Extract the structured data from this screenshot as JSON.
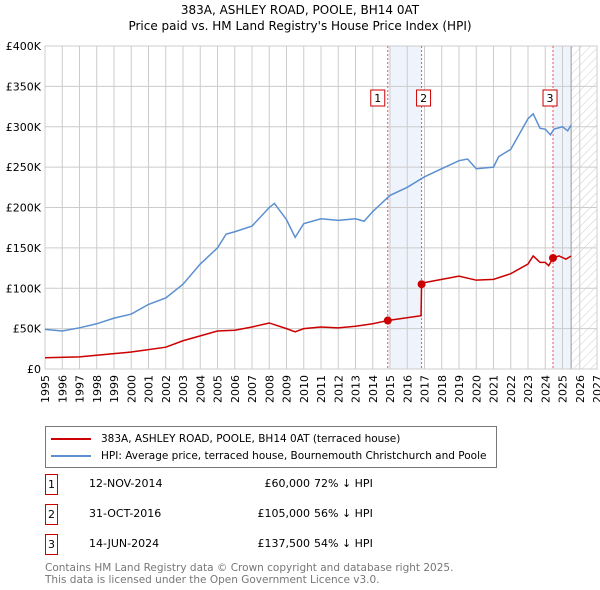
{
  "chart_data": {
    "type": "line",
    "title": "383A, ASHLEY ROAD, POOLE, BH14 0AT",
    "subtitle": "Price paid vs. HM Land Registry's House Price Index (HPI)",
    "xlim": [
      1995,
      2027
    ],
    "ylim": [
      0,
      400000
    ],
    "x_ticks": [
      "1995",
      "1996",
      "1997",
      "1998",
      "1999",
      "2000",
      "2001",
      "2002",
      "2003",
      "2004",
      "2005",
      "2006",
      "2007",
      "2008",
      "2009",
      "2010",
      "2011",
      "2012",
      "2013",
      "2014",
      "2015",
      "2016",
      "2017",
      "2018",
      "2019",
      "2020",
      "2021",
      "2022",
      "2023",
      "2024",
      "2025",
      "2026",
      "2027"
    ],
    "y_ticks": [
      {
        "v": 0,
        "l": "£0"
      },
      {
        "v": 50000,
        "l": "£50K"
      },
      {
        "v": 100000,
        "l": "£100K"
      },
      {
        "v": 150000,
        "l": "£150K"
      },
      {
        "v": 200000,
        "l": "£200K"
      },
      {
        "v": 250000,
        "l": "£250K"
      },
      {
        "v": 300000,
        "l": "£300K"
      },
      {
        "v": 350000,
        "l": "£350K"
      },
      {
        "v": 400000,
        "l": "£400K"
      }
    ],
    "grid": true,
    "series": [
      {
        "name": "383A, ASHLEY ROAD, POOLE, BH14 0AT (terraced house)",
        "color": "#cc0000",
        "x": [
          1995,
          1997,
          1999,
          2000,
          2001,
          2002,
          2003,
          2004,
          2005,
          2006,
          2007,
          2008,
          2009,
          2009.5,
          2010,
          2011,
          2012,
          2013,
          2014,
          2014.87,
          2016.8,
          2016.83,
          2017,
          2018,
          2019,
          2020,
          2021,
          2022,
          2023,
          2023.3,
          2023.7,
          2024,
          2024.2,
          2024.45,
          2024.8,
          2025.2,
          2025.5
        ],
        "y": [
          14000,
          15000,
          19000,
          21000,
          24000,
          27000,
          35000,
          41000,
          47000,
          48000,
          52000,
          57000,
          50000,
          46000,
          50000,
          52000,
          51000,
          53000,
          56000,
          60000,
          66000,
          105000,
          107000,
          111000,
          115000,
          110000,
          111000,
          118000,
          130000,
          140000,
          132000,
          132000,
          128000,
          137500,
          140000,
          136000,
          140000
        ]
      },
      {
        "name": "HPI: Average price, terraced house, Bournemouth Christchurch and Poole",
        "color": "#5b8fd0",
        "x": [
          1995,
          1996,
          1997,
          1998,
          1999,
          2000,
          2001,
          2002,
          2003,
          2004,
          2005,
          2005.5,
          2006,
          2007,
          2008,
          2008.3,
          2009,
          2009.5,
          2010,
          2011,
          2012,
          2013,
          2013.5,
          2014,
          2015,
          2016,
          2017,
          2018,
          2019,
          2019.5,
          2020,
          2021,
          2021.3,
          2022,
          2023,
          2023.3,
          2023.7,
          2024,
          2024.3,
          2024.5,
          2025,
          2025.3,
          2025.5
        ],
        "y": [
          49000,
          47000,
          51000,
          56000,
          63000,
          68000,
          80000,
          88000,
          105000,
          130000,
          150000,
          167000,
          170000,
          177000,
          200000,
          205000,
          185000,
          163000,
          180000,
          186000,
          184000,
          186000,
          183000,
          195000,
          215000,
          225000,
          238000,
          248000,
          258000,
          260000,
          248000,
          250000,
          263000,
          272000,
          310000,
          316000,
          298000,
          297000,
          290000,
          297000,
          300000,
          295000,
          302000
        ]
      }
    ],
    "sales": [
      {
        "n": "1",
        "x": 2014.87,
        "y": 60000,
        "date": "12-NOV-2014",
        "price": "£60,000",
        "hpi": "72% ↓ HPI"
      },
      {
        "n": "2",
        "x": 2016.83,
        "y": 105000,
        "date": "31-OCT-2016",
        "price": "£105,000",
        "hpi": "56% ↓ HPI"
      },
      {
        "n": "3",
        "x": 2024.45,
        "y": 137500,
        "date": "14-JUN-2024",
        "price": "£137,500",
        "hpi": "54% ↓ HPI"
      }
    ],
    "legend": "bottom"
  },
  "footer": [
    "Contains HM Land Registry data © Crown copyright and database right 2025.",
    "This data is licensed under the Open Government Licence v3.0."
  ]
}
